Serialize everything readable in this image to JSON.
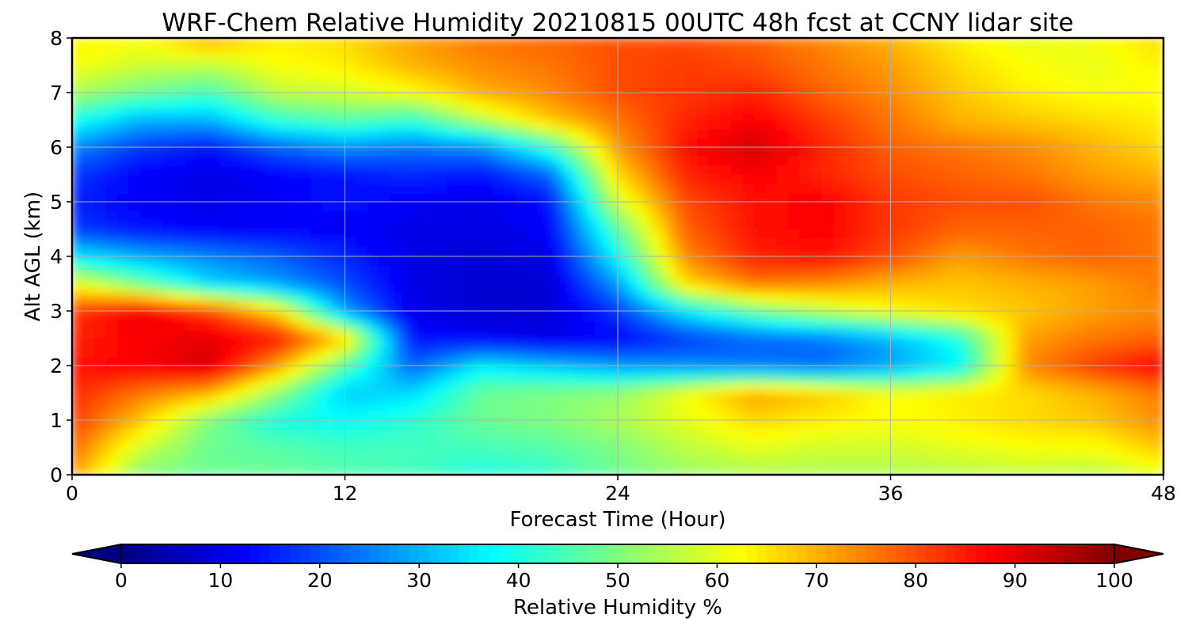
{
  "chart_data": {
    "type": "heatmap",
    "title": "WRF-Chem Relative Humidity 20210815 00UTC 48h fcst at CCNY lidar site",
    "xlabel": "Forecast Time (Hour)",
    "ylabel": "Alt AGL (km)",
    "xlim": [
      0,
      48
    ],
    "ylim": [
      0,
      8
    ],
    "x_ticks": [
      "0",
      "12",
      "24",
      "36",
      "48"
    ],
    "y_ticks": [
      "0",
      "1",
      "2",
      "3",
      "4",
      "5",
      "6",
      "7",
      "8"
    ],
    "grid": true,
    "colormap": "jet",
    "colorbar": {
      "label": "Relative Humidity %",
      "range": [
        0,
        100
      ],
      "ticks": [
        "0",
        "10",
        "20",
        "30",
        "40",
        "50",
        "60",
        "70",
        "80",
        "90",
        "100"
      ],
      "extend": "both",
      "orientation": "horizontal",
      "placement": "bottom"
    },
    "x": [
      0,
      3,
      6,
      9,
      12,
      15,
      18,
      21,
      24,
      27,
      30,
      33,
      36,
      39,
      42,
      45,
      48
    ],
    "y": [
      0,
      0.5,
      1,
      1.5,
      2,
      2.5,
      3,
      3.5,
      4,
      4.5,
      5,
      5.5,
      6,
      6.5,
      7,
      7.5,
      8
    ],
    "z_rows_by_altitude": [
      [
        72,
        50,
        48,
        48,
        46,
        44,
        40,
        42,
        48,
        52,
        54,
        54,
        54,
        55,
        56,
        55,
        60
      ],
      [
        78,
        58,
        48,
        46,
        44,
        44,
        44,
        46,
        50,
        56,
        60,
        58,
        58,
        60,
        62,
        62,
        68
      ],
      [
        82,
        68,
        50,
        40,
        38,
        42,
        48,
        50,
        54,
        60,
        66,
        64,
        62,
        64,
        66,
        68,
        74
      ],
      [
        84,
        76,
        70,
        52,
        32,
        34,
        48,
        50,
        52,
        62,
        72,
        68,
        62,
        64,
        66,
        70,
        76
      ],
      [
        86,
        88,
        92,
        72,
        46,
        22,
        36,
        32,
        28,
        26,
        24,
        22,
        28,
        36,
        74,
        82,
        88
      ],
      [
        84,
        88,
        90,
        86,
        68,
        14,
        12,
        10,
        12,
        18,
        22,
        24,
        30,
        40,
        72,
        76,
        78
      ],
      [
        82,
        90,
        82,
        66,
        28,
        10,
        8,
        8,
        18,
        36,
        48,
        56,
        62,
        66,
        68,
        72,
        74
      ],
      [
        62,
        48,
        34,
        28,
        20,
        10,
        8,
        8,
        28,
        66,
        76,
        74,
        70,
        68,
        70,
        72,
        76
      ],
      [
        36,
        30,
        26,
        22,
        16,
        10,
        8,
        10,
        38,
        74,
        84,
        86,
        80,
        72,
        76,
        78,
        76
      ],
      [
        18,
        14,
        12,
        12,
        12,
        10,
        10,
        12,
        46,
        78,
        86,
        88,
        82,
        78,
        78,
        78,
        76
      ],
      [
        16,
        12,
        10,
        12,
        14,
        12,
        10,
        14,
        58,
        80,
        86,
        88,
        82,
        80,
        80,
        76,
        74
      ],
      [
        18,
        12,
        10,
        12,
        14,
        16,
        14,
        22,
        66,
        84,
        88,
        84,
        80,
        78,
        76,
        72,
        70
      ],
      [
        26,
        18,
        14,
        22,
        26,
        24,
        26,
        42,
        72,
        86,
        92,
        84,
        78,
        76,
        74,
        70,
        66
      ],
      [
        40,
        30,
        30,
        42,
        46,
        42,
        56,
        68,
        76,
        84,
        88,
        82,
        76,
        70,
        68,
        66,
        64
      ],
      [
        54,
        48,
        44,
        56,
        58,
        62,
        70,
        74,
        80,
        82,
        84,
        78,
        74,
        68,
        64,
        62,
        62
      ],
      [
        62,
        58,
        56,
        62,
        64,
        70,
        74,
        76,
        80,
        82,
        80,
        76,
        72,
        66,
        62,
        60,
        64
      ],
      [
        64,
        62,
        72,
        64,
        66,
        72,
        76,
        78,
        80,
        80,
        78,
        74,
        70,
        64,
        60,
        62,
        66
      ]
    ]
  }
}
